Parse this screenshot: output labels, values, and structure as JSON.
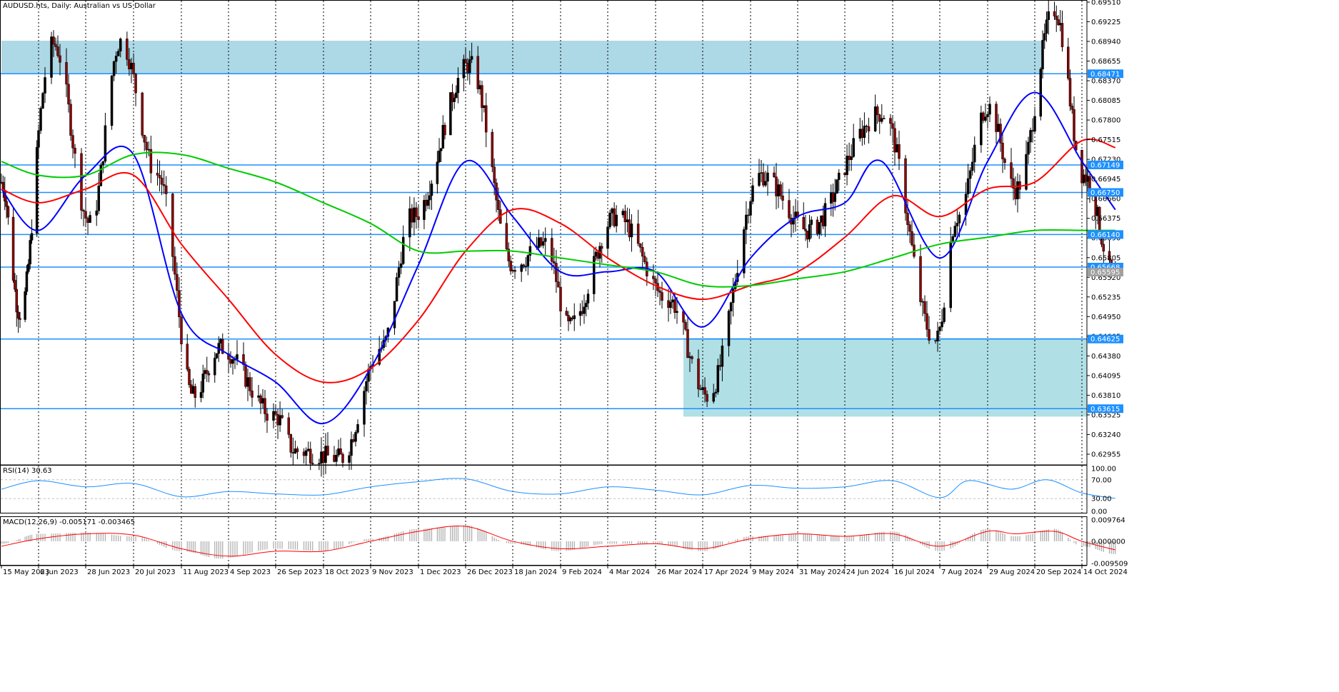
{
  "chart_data": [
    {
      "type": "candlestick",
      "title": "AUDUSD.hts, Daily:  Australian vs US Dollar",
      "xlabel": "",
      "ylabel": "",
      "ylim": [
        0.6281,
        0.6953
      ],
      "yticks": [
        "0.69510",
        "0.69225",
        "0.68940",
        "0.68655",
        "0.68370",
        "0.68085",
        "0.67800",
        "0.67515",
        "0.67230",
        "0.66945",
        "0.66660",
        "0.66375",
        "0.66090",
        "0.65805",
        "0.65520",
        "0.65235",
        "0.64950",
        "0.64665",
        "0.64380",
        "0.64095",
        "0.63810",
        "0.63525",
        "0.63240",
        "0.62955"
      ],
      "xticks": [
        "15 May 2023",
        "6 Jun 2023",
        "28 Jun 2023",
        "20 Jul 2023",
        "11 Aug 2023",
        "4 Sep 2023",
        "26 Sep 2023",
        "18 Oct 2023",
        "9 Nov 2023",
        "1 Dec 2023",
        "26 Dec 2023",
        "18 Jan 2024",
        "9 Feb 2024",
        "4 Mar 2024",
        "26 Mar 2024",
        "17 Apr 2024",
        "9 May 2024",
        "31 May 2024",
        "24 Jun 2024",
        "16 Jul 2024",
        "7 Aug 2024",
        "29 Aug 2024",
        "20 Sep 2024",
        "14 Oct 2024"
      ],
      "horizontal_levels": [
        "0.68471",
        "0.67149",
        "0.66750",
        "0.66140",
        "0.65668",
        "0.64625",
        "0.63615"
      ],
      "current_price": "0.65595",
      "zones": [
        {
          "from": "15 May 2023",
          "to": "24 Sep 2024",
          "low": 0.6847,
          "high": 0.6895,
          "color": "#add8e6"
        },
        {
          "from": "8 Apr 2024",
          "to": "31 Oct 2024",
          "low": 0.635,
          "high": 0.6464,
          "color": "#b0e0e6"
        }
      ],
      "key_points": [
        {
          "x": "15 May 2023",
          "y": 0.669
        },
        {
          "x": "26 May 2023",
          "y": 0.65
        },
        {
          "x": "13 Jun 2023",
          "y": 0.689
        },
        {
          "x": "30 Jun 2023",
          "y": 0.663
        },
        {
          "x": "14 Jul 2023",
          "y": 0.6894
        },
        {
          "x": "31 Jul 2023",
          "y": 0.67
        },
        {
          "x": "17 Aug 2023",
          "y": 0.638
        },
        {
          "x": "31 Aug 2023",
          "y": 0.645
        },
        {
          "x": "26 Sep 2023",
          "y": 0.635
        },
        {
          "x": "5 Oct 2023",
          "y": 0.63
        },
        {
          "x": "26 Oct 2023",
          "y": 0.629
        },
        {
          "x": "14 Nov 2023",
          "y": 0.645
        },
        {
          "x": "28 Nov 2023",
          "y": 0.664
        },
        {
          "x": "28 Dec 2023",
          "y": 0.686
        },
        {
          "x": "18 Jan 2024",
          "y": 0.657
        },
        {
          "x": "2 Feb 2024",
          "y": 0.66
        },
        {
          "x": "13 Feb 2024",
          "y": 0.648
        },
        {
          "x": "8 Mar 2024",
          "y": 0.664
        },
        {
          "x": "1 Apr 2024",
          "y": 0.652
        },
        {
          "x": "19 Apr 2024",
          "y": 0.638
        },
        {
          "x": "14 May 2024",
          "y": 0.67
        },
        {
          "x": "5 Jun 2024",
          "y": 0.662
        },
        {
          "x": "11 Jul 2024",
          "y": 0.679
        },
        {
          "x": "5 Aug 2024",
          "y": 0.646
        },
        {
          "x": "15 Aug 2024",
          "y": 0.664
        },
        {
          "x": "29 Aug 2024",
          "y": 0.68
        },
        {
          "x": "11 Sep 2024",
          "y": 0.668
        },
        {
          "x": "30 Sep 2024",
          "y": 0.694
        },
        {
          "x": "15 Oct 2024",
          "y": 0.67
        },
        {
          "x": "31 Oct 2024",
          "y": 0.655
        }
      ],
      "series": [
        {
          "name": "",
          "color": "#0000ff",
          "key_points": [
            {
              "x": "15 May 2023",
              "y": 0.668
            },
            {
              "x": "6 Jun 2023",
              "y": 0.662
            },
            {
              "x": "28 Jun 2023",
              "y": 0.67
            },
            {
              "x": "20 Jul 2023",
              "y": 0.673
            },
            {
              "x": "11 Aug 2023",
              "y": 0.65
            },
            {
              "x": "4 Sep 2023",
              "y": 0.644
            },
            {
              "x": "26 Sep 2023",
              "y": 0.64
            },
            {
              "x": "18 Oct 2023",
              "y": 0.634
            },
            {
              "x": "9 Nov 2023",
              "y": 0.642
            },
            {
              "x": "1 Dec 2023",
              "y": 0.657
            },
            {
              "x": "26 Dec 2023",
              "y": 0.672
            },
            {
              "x": "18 Jan 2024",
              "y": 0.664
            },
            {
              "x": "9 Feb 2024",
              "y": 0.656
            },
            {
              "x": "4 Mar 2024",
              "y": 0.656
            },
            {
              "x": "26 Mar 2024",
              "y": 0.656
            },
            {
              "x": "17 Apr 2024",
              "y": 0.648
            },
            {
              "x": "9 May 2024",
              "y": 0.658
            },
            {
              "x": "31 May 2024",
              "y": 0.664
            },
            {
              "x": "24 Jun 2024",
              "y": 0.666
            },
            {
              "x": "11 Jul 2024",
              "y": 0.672
            },
            {
              "x": "7 Aug 2024",
              "y": 0.658
            },
            {
              "x": "29 Aug 2024",
              "y": 0.672
            },
            {
              "x": "20 Sep 2024",
              "y": 0.682
            },
            {
              "x": "14 Oct 2024",
              "y": 0.672
            },
            {
              "x": "31 Oct 2024",
              "y": 0.665
            }
          ]
        },
        {
          "name": "",
          "color": "#ff0000",
          "key_points": [
            {
              "x": "15 May 2023",
              "y": 0.668
            },
            {
              "x": "6 Jun 2023",
              "y": 0.666
            },
            {
              "x": "28 Jun 2023",
              "y": 0.668
            },
            {
              "x": "20 Jul 2023",
              "y": 0.67
            },
            {
              "x": "11 Aug 2023",
              "y": 0.66
            },
            {
              "x": "4 Sep 2023",
              "y": 0.652
            },
            {
              "x": "26 Sep 2023",
              "y": 0.644
            },
            {
              "x": "18 Oct 2023",
              "y": 0.64
            },
            {
              "x": "9 Nov 2023",
              "y": 0.642
            },
            {
              "x": "1 Dec 2023",
              "y": 0.649
            },
            {
              "x": "26 Dec 2023",
              "y": 0.659
            },
            {
              "x": "18 Jan 2024",
              "y": 0.665
            },
            {
              "x": "9 Feb 2024",
              "y": 0.663
            },
            {
              "x": "4 Mar 2024",
              "y": 0.658
            },
            {
              "x": "26 Mar 2024",
              "y": 0.654
            },
            {
              "x": "17 Apr 2024",
              "y": 0.652
            },
            {
              "x": "9 May 2024",
              "y": 0.654
            },
            {
              "x": "31 May 2024",
              "y": 0.656
            },
            {
              "x": "24 Jun 2024",
              "y": 0.661
            },
            {
              "x": "16 Jul 2024",
              "y": 0.667
            },
            {
              "x": "7 Aug 2024",
              "y": 0.664
            },
            {
              "x": "29 Aug 2024",
              "y": 0.668
            },
            {
              "x": "20 Sep 2024",
              "y": 0.669
            },
            {
              "x": "14 Oct 2024",
              "y": 0.675
            },
            {
              "x": "31 Oct 2024",
              "y": 0.674
            }
          ]
        },
        {
          "name": "",
          "color": "#00cc00",
          "key_points": [
            {
              "x": "15 May 2023",
              "y": 0.672
            },
            {
              "x": "6 Jun 2023",
              "y": 0.67
            },
            {
              "x": "28 Jun 2023",
              "y": 0.67
            },
            {
              "x": "20 Jul 2023",
              "y": 0.673
            },
            {
              "x": "11 Aug 2023",
              "y": 0.673
            },
            {
              "x": "4 Sep 2023",
              "y": 0.671
            },
            {
              "x": "26 Sep 2023",
              "y": 0.669
            },
            {
              "x": "18 Oct 2023",
              "y": 0.666
            },
            {
              "x": "9 Nov 2023",
              "y": 0.663
            },
            {
              "x": "1 Dec 2023",
              "y": 0.659
            },
            {
              "x": "26 Dec 2023",
              "y": 0.659
            },
            {
              "x": "18 Jan 2024",
              "y": 0.659
            },
            {
              "x": "9 Feb 2024",
              "y": 0.658
            },
            {
              "x": "4 Mar 2024",
              "y": 0.657
            },
            {
              "x": "26 Mar 2024",
              "y": 0.656
            },
            {
              "x": "17 Apr 2024",
              "y": 0.654
            },
            {
              "x": "9 May 2024",
              "y": 0.654
            },
            {
              "x": "31 May 2024",
              "y": 0.655
            },
            {
              "x": "24 Jun 2024",
              "y": 0.656
            },
            {
              "x": "16 Jul 2024",
              "y": 0.658
            },
            {
              "x": "7 Aug 2024",
              "y": 0.66
            },
            {
              "x": "29 Aug 2024",
              "y": 0.661
            },
            {
              "x": "20 Sep 2024",
              "y": 0.662
            },
            {
              "x": "14 Oct 2024",
              "y": 0.662
            },
            {
              "x": "31 Oct 2024",
              "y": 0.662
            }
          ]
        }
      ]
    },
    {
      "type": "line",
      "title": "RSI(14) 30.63",
      "ylim": [
        0,
        100
      ],
      "yticks": [
        "100.00",
        "70.00",
        "30.00",
        "0.00"
      ],
      "reference_levels": [
        70,
        30
      ],
      "series": [
        {
          "name": "",
          "color": "#1e90ff",
          "key_points": [
            {
              "x": "15 May 2023",
              "y": 50
            },
            {
              "x": "6 Jun 2023",
              "y": 68
            },
            {
              "x": "28 Jun 2023",
              "y": 55
            },
            {
              "x": "20 Jul 2023",
              "y": 62
            },
            {
              "x": "11 Aug 2023",
              "y": 34
            },
            {
              "x": "4 Sep 2023",
              "y": 45
            },
            {
              "x": "26 Sep 2023",
              "y": 40
            },
            {
              "x": "18 Oct 2023",
              "y": 38
            },
            {
              "x": "9 Nov 2023",
              "y": 55
            },
            {
              "x": "1 Dec 2023",
              "y": 66
            },
            {
              "x": "26 Dec 2023",
              "y": 72
            },
            {
              "x": "18 Jan 2024",
              "y": 45
            },
            {
              "x": "9 Feb 2024",
              "y": 40
            },
            {
              "x": "4 Mar 2024",
              "y": 55
            },
            {
              "x": "26 Mar 2024",
              "y": 48
            },
            {
              "x": "17 Apr 2024",
              "y": 38
            },
            {
              "x": "9 May 2024",
              "y": 58
            },
            {
              "x": "31 May 2024",
              "y": 52
            },
            {
              "x": "24 Jun 2024",
              "y": 55
            },
            {
              "x": "16 Jul 2024",
              "y": 68
            },
            {
              "x": "7 Aug 2024",
              "y": 32
            },
            {
              "x": "20 Aug 2024",
              "y": 68
            },
            {
              "x": "9 Sep 2024",
              "y": 50
            },
            {
              "x": "26 Sep 2024",
              "y": 70
            },
            {
              "x": "14 Oct 2024",
              "y": 42
            },
            {
              "x": "31 Oct 2024",
              "y": 30.63
            }
          ]
        }
      ]
    },
    {
      "type": "histogram+line",
      "title": "MACD(12,26,9) -0.005171 -0.003465",
      "ylim": [
        -0.009509,
        0.009764
      ],
      "yticks": [
        "0.009764",
        "0.000000",
        "-0.009509"
      ],
      "bar_color": "#aaaaaa",
      "key_points": [
        {
          "x": "15 May 2023",
          "y": -0.001
        },
        {
          "x": "6 Jun 2023",
          "y": 0.003
        },
        {
          "x": "28 Jun 2023",
          "y": 0.0035
        },
        {
          "x": "20 Jul 2023",
          "y": 0.002
        },
        {
          "x": "11 Aug 2023",
          "y": -0.004
        },
        {
          "x": "31 Aug 2023",
          "y": -0.007
        },
        {
          "x": "26 Sep 2023",
          "y": -0.003
        },
        {
          "x": "18 Oct 2023",
          "y": -0.004
        },
        {
          "x": "9 Nov 2023",
          "y": 0.001
        },
        {
          "x": "1 Dec 2023",
          "y": 0.005
        },
        {
          "x": "26 Dec 2023",
          "y": 0.0065
        },
        {
          "x": "18 Jan 2024",
          "y": -0.001
        },
        {
          "x": "9 Feb 2024",
          "y": -0.004
        },
        {
          "x": "4 Mar 2024",
          "y": -0.001
        },
        {
          "x": "26 Mar 2024",
          "y": -0.001
        },
        {
          "x": "17 Apr 2024",
          "y": -0.004
        },
        {
          "x": "9 May 2024",
          "y": 0.002
        },
        {
          "x": "31 May 2024",
          "y": 0.003
        },
        {
          "x": "24 Jun 2024",
          "y": 0.002
        },
        {
          "x": "16 Jul 2024",
          "y": 0.004
        },
        {
          "x": "7 Aug 2024",
          "y": -0.004
        },
        {
          "x": "29 Aug 2024",
          "y": 0.005
        },
        {
          "x": "11 Sep 2024",
          "y": 0.002
        },
        {
          "x": "30 Sep 2024",
          "y": 0.005
        },
        {
          "x": "14 Oct 2024",
          "y": -0.002
        },
        {
          "x": "31 Oct 2024",
          "y": -0.005171
        }
      ],
      "series": [
        {
          "name": "",
          "color": "#ff0000",
          "key_points": [
            {
              "x": "15 May 2023",
              "y": -0.002
            },
            {
              "x": "6 Jun 2023",
              "y": 0.001
            },
            {
              "x": "28 Jun 2023",
              "y": 0.003
            },
            {
              "x": "20 Jul 2023",
              "y": 0.0025
            },
            {
              "x": "11 Aug 2023",
              "y": -0.003
            },
            {
              "x": "4 Sep 2023",
              "y": -0.006
            },
            {
              "x": "26 Sep 2023",
              "y": -0.004
            },
            {
              "x": "18 Oct 2023",
              "y": -0.004
            },
            {
              "x": "9 Nov 2023",
              "y": 0.0
            },
            {
              "x": "1 Dec 2023",
              "y": 0.004
            },
            {
              "x": "26 Dec 2023",
              "y": 0.006
            },
            {
              "x": "18 Jan 2024",
              "y": 0.0
            },
            {
              "x": "9 Feb 2024",
              "y": -0.003
            },
            {
              "x": "4 Mar 2024",
              "y": -0.002
            },
            {
              "x": "26 Mar 2024",
              "y": -0.001
            },
            {
              "x": "17 Apr 2024",
              "y": -0.003
            },
            {
              "x": "9 May 2024",
              "y": 0.001
            },
            {
              "x": "31 May 2024",
              "y": 0.003
            },
            {
              "x": "24 Jun 2024",
              "y": 0.002
            },
            {
              "x": "16 Jul 2024",
              "y": 0.003
            },
            {
              "x": "7 Aug 2024",
              "y": -0.002
            },
            {
              "x": "29 Aug 2024",
              "y": 0.004
            },
            {
              "x": "11 Sep 2024",
              "y": 0.003
            },
            {
              "x": "30 Sep 2024",
              "y": 0.004
            },
            {
              "x": "14 Oct 2024",
              "y": 0.0
            },
            {
              "x": "31 Oct 2024",
              "y": -0.003465
            }
          ]
        }
      ]
    }
  ],
  "colors": {
    "candle_up": "#000000",
    "candle_down": "#8b0000",
    "level_line": "#1e90ff",
    "level_label_bg": "#1e90ff",
    "price_label_bg": "#a0a0a0",
    "grid": "#000000",
    "rsi_level": "#c0c0c0"
  }
}
